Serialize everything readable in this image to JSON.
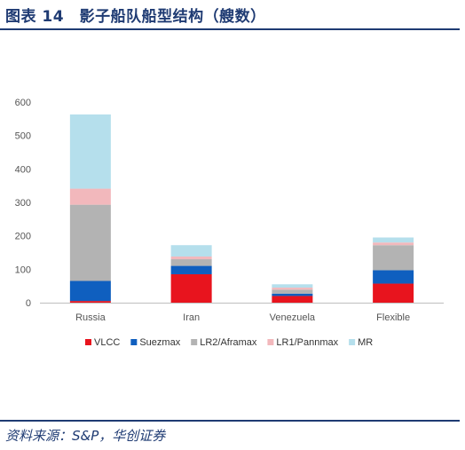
{
  "header": {
    "title": "图表 14　影子船队船型结构（艘数）"
  },
  "footer": {
    "source": "资料来源：S&P，华创证券"
  },
  "chart_data": {
    "type": "bar",
    "stacked": true,
    "categories": [
      "Russia",
      "Iran",
      "Venezuela",
      "Flexible"
    ],
    "ylim": [
      0,
      600
    ],
    "yticks": [
      0,
      100,
      200,
      300,
      400,
      500,
      600
    ],
    "grid": false,
    "legend_position": "bottom",
    "series": [
      {
        "name": "VLCC",
        "color": "#e8141e",
        "values": [
          5,
          85,
          20,
          57
        ]
      },
      {
        "name": "Suezmax",
        "color": "#0f5fbf",
        "values": [
          60,
          25,
          7,
          40
        ]
      },
      {
        "name": "LR2/Aframax",
        "color": "#b3b3b3",
        "values": [
          228,
          20,
          12,
          75
        ]
      },
      {
        "name": "LR1/Pannmax",
        "color": "#f2b8bc",
        "values": [
          48,
          8,
          6,
          8
        ]
      },
      {
        "name": "MR",
        "color": "#b5dfec",
        "values": [
          222,
          34,
          10,
          15
        ]
      }
    ]
  }
}
